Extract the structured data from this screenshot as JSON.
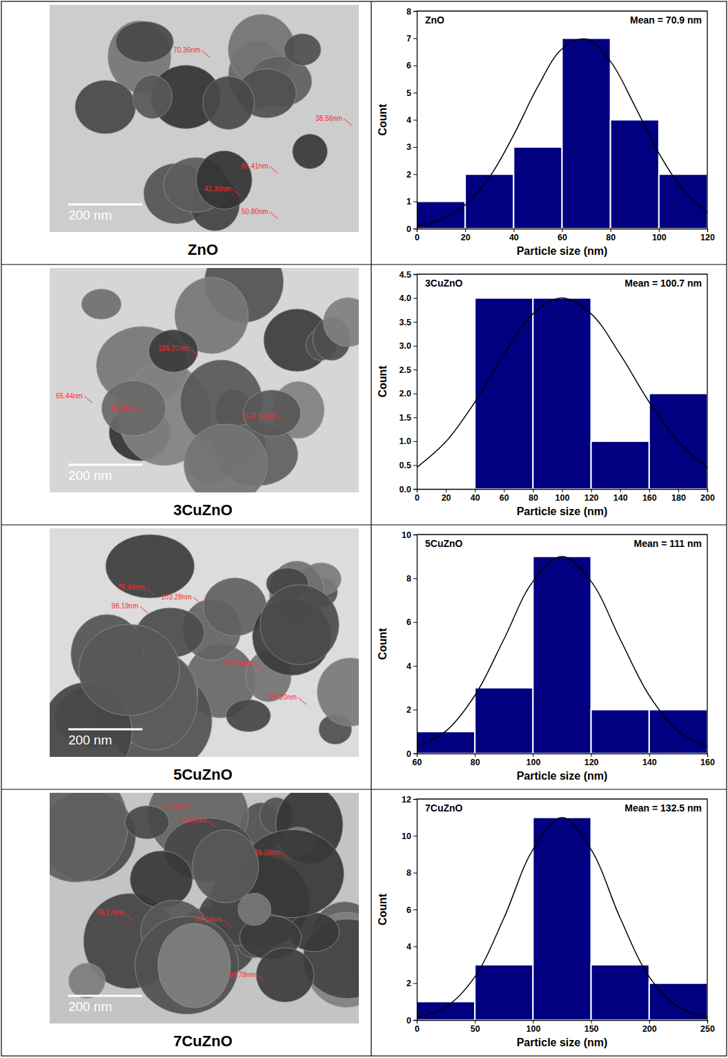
{
  "panels": [
    {
      "caption": "ZnO",
      "scale_bar": "200 nm",
      "measurements": [
        "70.36nm",
        "38.56nm",
        "65.41nm",
        "42.30nm",
        "50.80nm"
      ]
    },
    {
      "caption": "3CuZnO",
      "scale_bar": "200 nm",
      "measurements": [
        "65.44nm",
        "67.05nm",
        "126.27nm",
        "122.51nm"
      ]
    },
    {
      "caption": "5CuZnO",
      "scale_bar": "200 nm",
      "measurements": [
        "75.94nm",
        "103.28nm",
        "98.19nm",
        "114.74nm",
        "126.20nm"
      ]
    },
    {
      "caption": "7CuZnO",
      "scale_bar": "200 nm",
      "measurements": [
        "77.42nm",
        "73.90nm",
        "79.10nm",
        "78.17nm",
        "67.24nm",
        "98.78nm"
      ]
    }
  ],
  "chart_data": [
    {
      "type": "histogram",
      "title": "ZnO",
      "annotation": "Mean = 70.9 nm",
      "x_label": "Particle size (nm)",
      "y_label": "Count",
      "color": "#000080",
      "grid": false,
      "bins": [
        0,
        20,
        40,
        60,
        80,
        100,
        120
      ],
      "counts": [
        1,
        2,
        3,
        7,
        4,
        2
      ],
      "xlim": [
        0,
        120
      ],
      "xticks": [
        0,
        20,
        40,
        60,
        80,
        100,
        120
      ],
      "ylim": [
        0,
        8
      ],
      "yticks": [
        0,
        1,
        2,
        3,
        4,
        5,
        6,
        7,
        8
      ],
      "fit": {
        "color": "#000000",
        "x": [
          0,
          10,
          20,
          30,
          40,
          50,
          60,
          70,
          80,
          90,
          100,
          110,
          120
        ],
        "values": [
          0.11,
          0.33,
          0.87,
          1.89,
          3.44,
          5.22,
          6.61,
          6.97,
          6.15,
          4.52,
          2.77,
          1.42,
          0.6
        ]
      }
    },
    {
      "type": "histogram",
      "title": "3CuZnO",
      "annotation": "Mean = 100.7 nm",
      "x_label": "Particle size (nm)",
      "y_label": "Count",
      "color": "#000080",
      "grid": false,
      "bins": [
        40,
        80,
        120,
        160,
        200
      ],
      "counts": [
        4,
        4,
        1,
        2
      ],
      "xlim": [
        0,
        200
      ],
      "xticks": [
        0,
        20,
        40,
        60,
        80,
        100,
        120,
        140,
        160,
        180,
        200
      ],
      "ylim": [
        0,
        4.5
      ],
      "yticks": [
        {
          "value": 0,
          "label": "0.0"
        },
        {
          "value": 0.5,
          "label": "0.5"
        },
        {
          "value": 1,
          "label": "1.0"
        },
        {
          "value": 1.5,
          "label": "1.5"
        },
        {
          "value": 2,
          "label": "2.0"
        },
        {
          "value": 2.5,
          "label": "2.5"
        },
        {
          "value": 3,
          "label": "3.0"
        },
        {
          "value": 3.5,
          "label": "3.5"
        },
        {
          "value": 4,
          "label": "4.0"
        },
        {
          "value": 4.5,
          "label": "4.5"
        }
      ],
      "fit": {
        "color": "#000000",
        "x": [
          0,
          20,
          40,
          60,
          80,
          100,
          120,
          140,
          160,
          180,
          200
        ],
        "values": [
          0.45,
          0.99,
          1.82,
          2.82,
          3.67,
          4,
          3.67,
          2.82,
          1.82,
          0.99,
          0.45
        ]
      }
    },
    {
      "type": "histogram",
      "title": "5CuZnO",
      "annotation": "Mean = 111 nm",
      "x_label": "Particle size (nm)",
      "y_label": "Count",
      "color": "#000080",
      "grid": false,
      "bins": [
        60,
        80,
        100,
        120,
        140,
        160
      ],
      "counts": [
        1,
        3,
        9,
        2,
        2
      ],
      "xlim": [
        60,
        160
      ],
      "xticks": [
        60,
        80,
        100,
        120,
        140,
        160
      ],
      "ylim": [
        0,
        10
      ],
      "yticks": [
        0,
        2,
        4,
        6,
        8,
        10
      ],
      "fit": {
        "color": "#000000",
        "x": [
          60,
          70,
          80,
          90,
          100,
          110,
          120,
          130,
          140,
          150,
          160
        ],
        "values": [
          0.3,
          1.02,
          2.65,
          5.22,
          7.86,
          9,
          7.86,
          5.22,
          2.65,
          1.02,
          0.3
        ]
      }
    },
    {
      "type": "histogram",
      "title": "7CuZnO",
      "annotation": "Mean = 132.5 nm",
      "x_label": "Particle size (nm)",
      "y_label": "Count",
      "color": "#000080",
      "grid": false,
      "bins": [
        0,
        50,
        100,
        150,
        200,
        250
      ],
      "counts": [
        1,
        3,
        11,
        3,
        2
      ],
      "xlim": [
        0,
        250
      ],
      "xticks": [
        0,
        50,
        100,
        150,
        200,
        250
      ],
      "ylim": [
        0,
        12
      ],
      "yticks": [
        0,
        2,
        4,
        6,
        8,
        10,
        12
      ],
      "fit": {
        "color": "#000000",
        "x": [
          0,
          25,
          50,
          75,
          100,
          125,
          150,
          175,
          200,
          225,
          250
        ],
        "values": [
          0.15,
          0.71,
          2.35,
          5.54,
          9.26,
          11,
          9.26,
          5.54,
          2.35,
          0.71,
          0.15
        ]
      }
    }
  ]
}
